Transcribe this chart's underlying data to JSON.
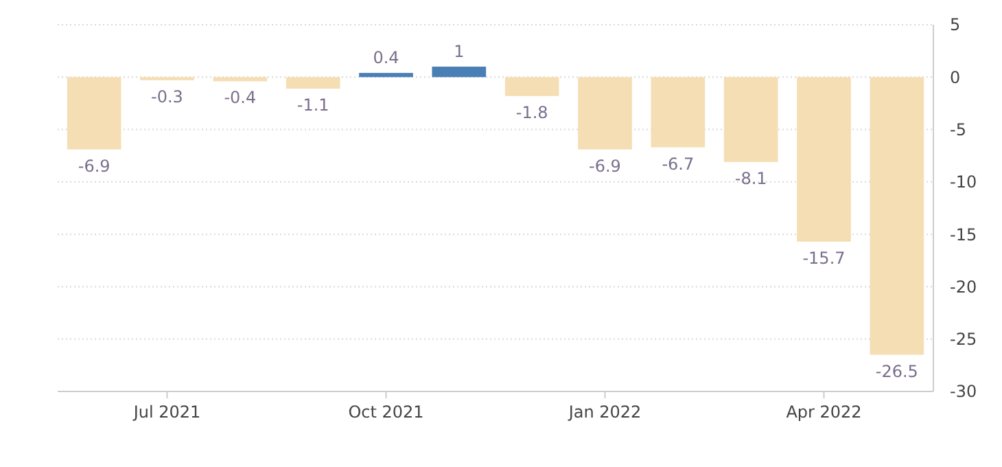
{
  "chart_data": {
    "type": "bar",
    "categories": [
      null,
      "Jul 2021",
      null,
      null,
      "Oct 2021",
      null,
      null,
      "Jan 2022",
      null,
      null,
      "Apr 2022",
      null
    ],
    "values": [
      -6.9,
      -0.3,
      -0.4,
      -1.1,
      0.4,
      1,
      -1.8,
      -6.9,
      -6.7,
      -8.1,
      -15.7,
      -26.5
    ],
    "colors": [
      "#f5deb3",
      "#f5deb3",
      "#f5deb3",
      "#f5deb3",
      "#4a7fb5",
      "#4a7fb5",
      "#f5deb3",
      "#f5deb3",
      "#f5deb3",
      "#f5deb3",
      "#f5deb3",
      "#f5deb3"
    ],
    "ylim": [
      -30,
      5
    ],
    "yticks": [
      5,
      0,
      -5,
      -10,
      -15,
      -20,
      -25,
      -30
    ],
    "grid": "y",
    "data_labels": true
  }
}
